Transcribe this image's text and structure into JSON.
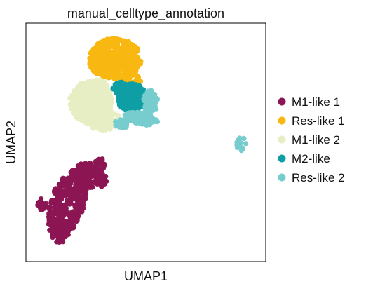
{
  "chart_data": {
    "type": "scatter",
    "title": "manual_celltype_annotation",
    "xlabel": "UMAP1",
    "ylabel": "UMAP2",
    "xlim": [
      0,
      100
    ],
    "ylim": [
      0,
      100
    ],
    "grid": false,
    "ticks": false,
    "legend": {
      "position": "right-outside"
    },
    "series": [
      {
        "name": "M1-like 1",
        "color": "#8c1554",
        "clusters": [
          {
            "cx": 17,
            "cy": 24,
            "rx": 7,
            "ry": 15,
            "n": 420,
            "rot": -18
          },
          {
            "cx": 27,
            "cy": 36,
            "rx": 7,
            "ry": 5,
            "n": 110,
            "rot": -25
          },
          {
            "cx": 14,
            "cy": 12,
            "rx": 3.5,
            "ry": 5,
            "n": 60,
            "rot": 0
          },
          {
            "cx": 6,
            "cy": 24,
            "rx": 2.5,
            "ry": 2.5,
            "n": 20,
            "rot": 0
          },
          {
            "cx": 30,
            "cy": 40,
            "rx": 2.5,
            "ry": 4,
            "n": 25,
            "rot": -30
          }
        ]
      },
      {
        "name": "Res-like 1",
        "color": "#f9b811",
        "clusters": [
          {
            "cx": 37,
            "cy": 85,
            "rx": 11,
            "ry": 9,
            "n": 500,
            "rot": 0
          },
          {
            "cx": 43,
            "cy": 76,
            "rx": 5,
            "ry": 3,
            "n": 80,
            "rot": 0
          }
        ]
      },
      {
        "name": "M1-like 2",
        "color": "#e8eec4",
        "clusters": [
          {
            "cx": 27,
            "cy": 67,
            "rx": 9,
            "ry": 9,
            "n": 520,
            "rot": 0
          },
          {
            "cx": 32,
            "cy": 60,
            "rx": 8,
            "ry": 5,
            "n": 120,
            "rot": 0
          },
          {
            "cx": 30,
            "cy": 74,
            "rx": 4,
            "ry": 3,
            "n": 40,
            "rot": 0
          }
        ]
      },
      {
        "name": "M2-like",
        "color": "#0e9ea3",
        "clusters": [
          {
            "cx": 44,
            "cy": 69,
            "rx": 6,
            "ry": 6,
            "n": 330,
            "rot": 0
          },
          {
            "cx": 39,
            "cy": 73,
            "rx": 3,
            "ry": 2.5,
            "n": 60,
            "rot": 0
          }
        ]
      },
      {
        "name": "Res-like 2",
        "color": "#77ccce",
        "clusters": [
          {
            "cx": 48,
            "cy": 60,
            "rx": 7,
            "ry": 2.5,
            "n": 160,
            "rot": -10
          },
          {
            "cx": 52,
            "cy": 67,
            "rx": 3,
            "ry": 5,
            "n": 80,
            "rot": 0
          },
          {
            "cx": 40,
            "cy": 58,
            "rx": 3,
            "ry": 2,
            "n": 35,
            "rot": 0
          },
          {
            "cx": 90,
            "cy": 49,
            "rx": 2.5,
            "ry": 3,
            "n": 18,
            "rot": 0
          }
        ]
      }
    ]
  }
}
